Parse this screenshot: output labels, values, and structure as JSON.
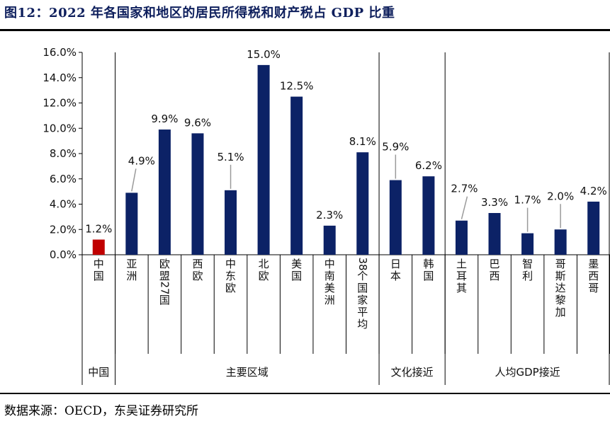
{
  "title": "图12：2022 年各国家和地区的居民所得税和财产税占 GDP 比重",
  "source": "数据来源：OECD，东吴证券研究所",
  "colors": {
    "highlight": "#c00000",
    "bar": "#0c2266",
    "axis": "#000000",
    "leader": "#9a9a9a"
  },
  "chart_data": {
    "type": "bar",
    "title": "图12：2022 年各国家和地区的居民所得税和财产税占 GDP 比重",
    "xlabel": "",
    "ylabel": "",
    "ylim": [
      0,
      16
    ],
    "yticks": [
      "0.0%",
      "2.0%",
      "4.0%",
      "6.0%",
      "8.0%",
      "10.0%",
      "12.0%",
      "14.0%",
      "16.0%"
    ],
    "grid": false,
    "legend": "none",
    "categories": [
      "中国",
      "亚洲",
      "欧盟27国",
      "西欧",
      "中东欧",
      "北欧",
      "美国",
      "中南美洲",
      "38个国家平均",
      "日本",
      "韩国",
      "土耳其",
      "巴西",
      "智利",
      "哥斯达黎加",
      "墨西哥"
    ],
    "values": [
      1.2,
      4.9,
      9.9,
      9.6,
      5.1,
      15.0,
      12.5,
      2.3,
      8.1,
      5.9,
      6.2,
      2.7,
      3.3,
      1.7,
      2.0,
      4.2
    ],
    "data_labels": [
      "1.2%",
      "4.9%",
      "9.9%",
      "9.6%",
      "5.1%",
      "15.0%",
      "12.5%",
      "2.3%",
      "8.1%",
      "5.9%",
      "6.2%",
      "2.7%",
      "3.3%",
      "1.7%",
      "2.0%",
      "4.2%"
    ],
    "highlight_category": "中国",
    "groups": [
      {
        "label": "中国",
        "categories": [
          "中国"
        ]
      },
      {
        "label": "主要区域",
        "categories": [
          "亚洲",
          "欧盟27国",
          "西欧",
          "中东欧",
          "北欧",
          "美国",
          "中南美洲",
          "38个国家平均"
        ]
      },
      {
        "label": "文化接近",
        "categories": [
          "日本",
          "韩国"
        ]
      },
      {
        "label": "人均GDP接近",
        "categories": [
          "土耳其",
          "巴西",
          "智利",
          "哥斯达黎加",
          "墨西哥"
        ]
      }
    ]
  }
}
